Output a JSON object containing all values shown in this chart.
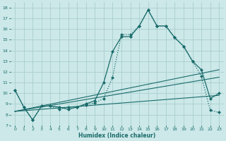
{
  "xlabel": "Humidex (Indice chaleur)",
  "bg_color": "#cce8e8",
  "line_color": "#1a6b6b",
  "grid_color": "#aacece",
  "xlim": [
    -0.5,
    23.5
  ],
  "ylim": [
    7,
    18.5
  ],
  "xticks": [
    0,
    1,
    2,
    3,
    4,
    5,
    6,
    7,
    8,
    9,
    10,
    11,
    12,
    13,
    14,
    15,
    16,
    17,
    18,
    19,
    20,
    21,
    22,
    23
  ],
  "yticks": [
    7,
    8,
    9,
    10,
    11,
    12,
    13,
    14,
    15,
    16,
    17,
    18
  ],
  "curve1_x": [
    0,
    1,
    2,
    3,
    4,
    5,
    6,
    7,
    8,
    9,
    10,
    11,
    12,
    13,
    14,
    15,
    16,
    17,
    18,
    19,
    20,
    21,
    22,
    23
  ],
  "curve1_y": [
    10.3,
    8.7,
    7.5,
    8.8,
    8.8,
    8.7,
    8.5,
    8.7,
    9.0,
    9.3,
    11.0,
    13.9,
    15.3,
    15.3,
    16.3,
    17.8,
    16.3,
    16.3,
    15.2,
    14.4,
    13.0,
    12.2,
    9.5,
    10.0
  ],
  "curve2_x": [
    0,
    1,
    2,
    3,
    4,
    5,
    6,
    7,
    8,
    9,
    10,
    11,
    12,
    13,
    14,
    15,
    16,
    17,
    18,
    19,
    20,
    21,
    22,
    23
  ],
  "curve2_y": [
    10.3,
    8.7,
    7.5,
    8.8,
    8.8,
    8.5,
    8.7,
    8.7,
    8.9,
    9.1,
    9.5,
    11.5,
    15.5,
    15.5,
    16.3,
    17.8,
    16.3,
    16.3,
    15.2,
    14.4,
    13.0,
    11.6,
    8.4,
    8.2
  ],
  "line1_x": [
    0,
    23
  ],
  "line1_y": [
    8.3,
    9.8
  ],
  "line2_x": [
    0,
    23
  ],
  "line2_y": [
    8.3,
    11.5
  ],
  "line3_x": [
    0,
    23
  ],
  "line3_y": [
    8.3,
    12.2
  ],
  "figsize": [
    3.2,
    2.0
  ],
  "dpi": 100
}
